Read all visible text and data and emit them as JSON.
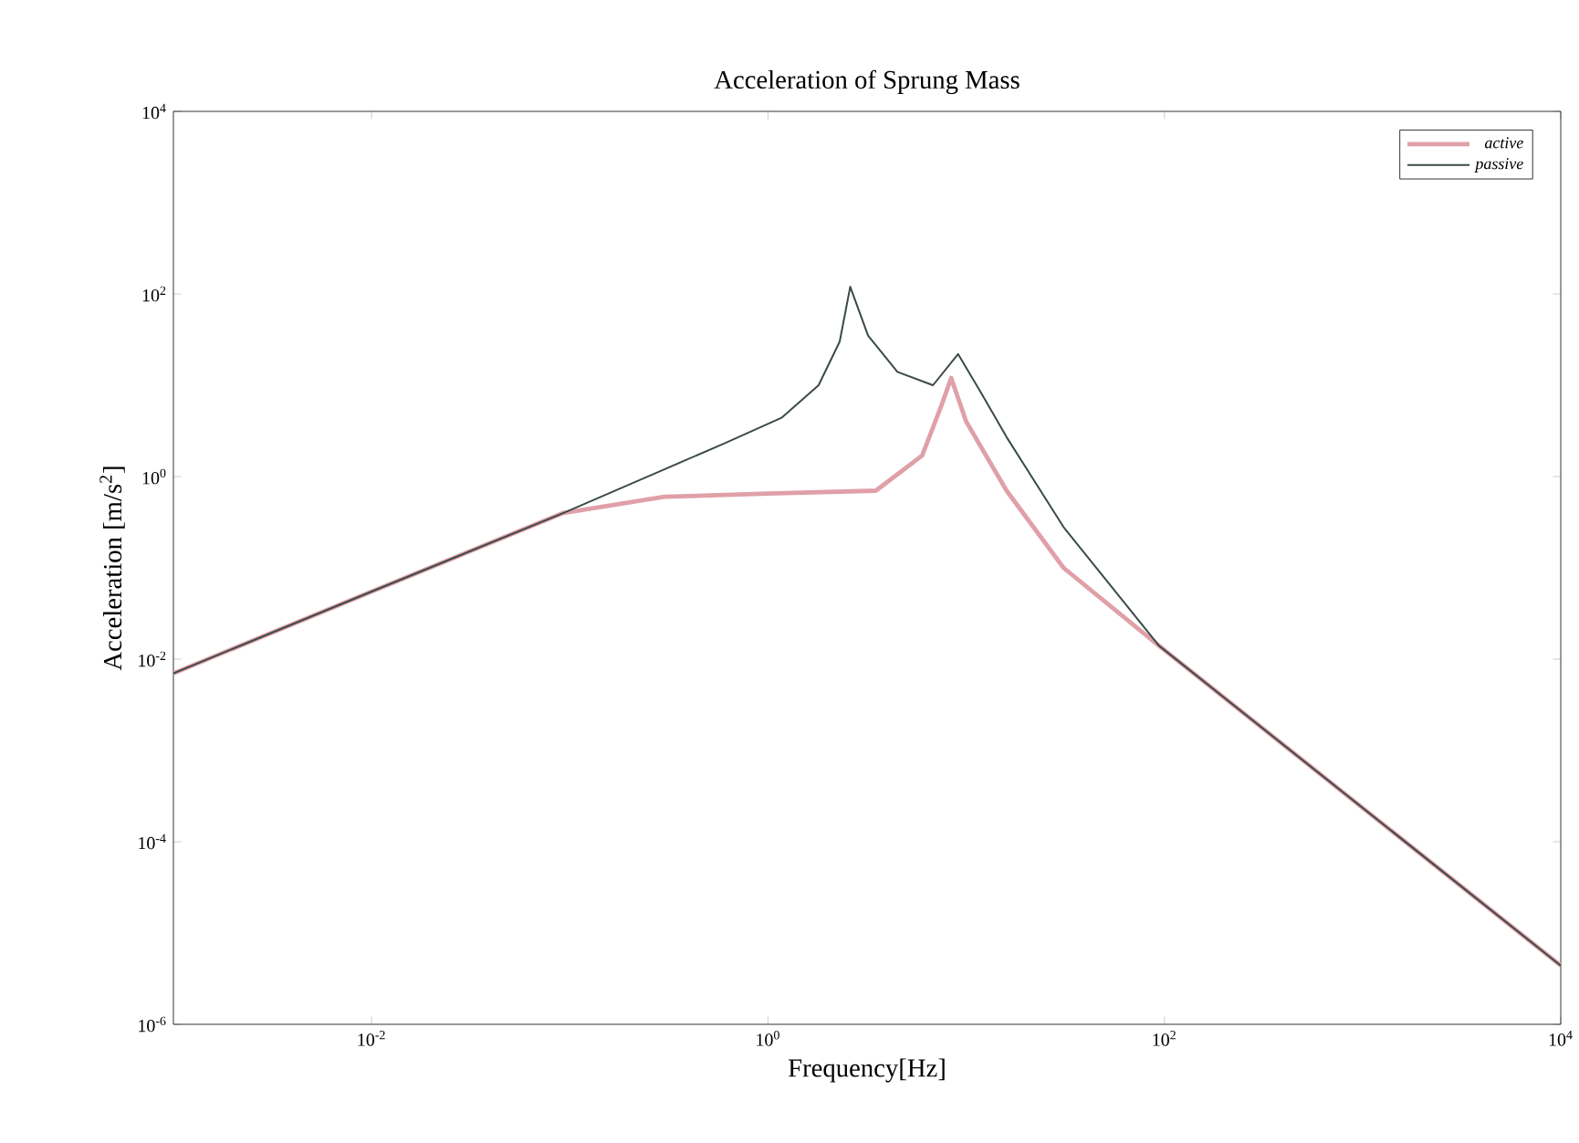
{
  "chart_data": {
    "type": "line",
    "title": "Acceleration of Sprung Mass",
    "xlabel": "Frequency[Hz]",
    "ylabel": "Acceleration [m/s$^{2}$]",
    "log": "xy",
    "grid": false,
    "legend": "top right",
    "marker": "none",
    "line_style": "solid",
    "xlim": [
      0.001,
      10000
    ],
    "ylim": [
      1e-06,
      10000
    ],
    "xticks": [
      {
        "value": 0.01,
        "label": "10$^{-2}$"
      },
      {
        "value": 1,
        "label": "10$^{0}$"
      },
      {
        "value": 100,
        "label": "10$^{2}$"
      },
      {
        "value": 10000,
        "label": "10$^{4}$"
      }
    ],
    "yticks": [
      {
        "value": 1e-06,
        "label": "10$^{-6}$"
      },
      {
        "value": 0.0001,
        "label": "10$^{-4}$"
      },
      {
        "value": 0.01,
        "label": "10$^{-2}$"
      },
      {
        "value": 1,
        "label": "10$^{0}$"
      },
      {
        "value": 100,
        "label": "10$^{2}$"
      },
      {
        "value": 10000,
        "label": "10$^{4}$"
      }
    ],
    "series": [
      {
        "name": "active",
        "color": "#e0a0a8",
        "x": [
          0.001,
          0.01,
          0.093,
          0.3,
          1,
          3.5,
          6,
          7.5,
          8.4,
          10,
          16,
          31,
          94,
          10000
        ],
        "values": [
          0.007,
          0.055,
          0.4,
          0.6,
          0.65,
          0.7,
          1.7,
          6,
          12,
          4,
          0.7,
          0.1,
          0.014,
          4.4e-06
        ]
      },
      {
        "name": "passive",
        "color": "#3a4a48",
        "x": [
          0.001,
          0.01,
          0.093,
          0.3,
          0.6,
          1.17,
          1.8,
          2.3,
          2.6,
          3.2,
          4.5,
          6.8,
          9.1,
          12,
          16,
          31,
          94,
          10000
        ],
        "values": [
          0.007,
          0.055,
          0.4,
          1.2,
          2.3,
          4.4,
          10,
          30,
          120,
          35,
          14,
          10,
          22,
          8,
          2.7,
          0.28,
          0.014,
          4.4e-06
        ]
      }
    ]
  }
}
